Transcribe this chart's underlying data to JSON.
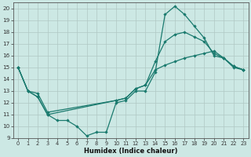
{
  "xlabel": "Humidex (Indice chaleur)",
  "bg_color": "#cce8e4",
  "line_color": "#1a7a6e",
  "grid_color": "#b0c8c4",
  "xlim": [
    -0.5,
    23.5
  ],
  "ylim": [
    9,
    20.5
  ],
  "yticks": [
    9,
    10,
    11,
    12,
    13,
    14,
    15,
    16,
    17,
    18,
    19,
    20
  ],
  "xticks": [
    0,
    1,
    2,
    3,
    4,
    5,
    6,
    7,
    8,
    9,
    10,
    11,
    12,
    13,
    14,
    15,
    16,
    17,
    18,
    19,
    20,
    21,
    22,
    23
  ],
  "line1_x": [
    0,
    1,
    2,
    3,
    4,
    5,
    6,
    7,
    8,
    9,
    10,
    11,
    12,
    13,
    14,
    15,
    16,
    17,
    18,
    19,
    20,
    21,
    22,
    23
  ],
  "line1_y": [
    15,
    13,
    12.5,
    11,
    10.5,
    10.5,
    10,
    9.2,
    9.5,
    9.5,
    12,
    12.2,
    13,
    13,
    14.6,
    19.5,
    20.2,
    19.5,
    18.5,
    17.5,
    16,
    15.8,
    15,
    14.8
  ],
  "line2_x": [
    0,
    1,
    2,
    3,
    10,
    11,
    12,
    13,
    14,
    15,
    16,
    17,
    18,
    19,
    20,
    21,
    22,
    23
  ],
  "line2_y": [
    15,
    13,
    12.5,
    11,
    12.2,
    12.4,
    13.2,
    13.5,
    15.5,
    17.2,
    17.8,
    18.0,
    17.6,
    17.2,
    16.2,
    15.8,
    15.1,
    14.8
  ],
  "line3_x": [
    0,
    1,
    2,
    3,
    10,
    11,
    12,
    13,
    14,
    15,
    16,
    17,
    18,
    19,
    20,
    21,
    22,
    23
  ],
  "line3_y": [
    15,
    13,
    12.8,
    11.2,
    12.2,
    12.4,
    13.2,
    13.5,
    14.8,
    15.2,
    15.5,
    15.8,
    16.0,
    16.2,
    16.4,
    15.8,
    15.1,
    14.8
  ]
}
